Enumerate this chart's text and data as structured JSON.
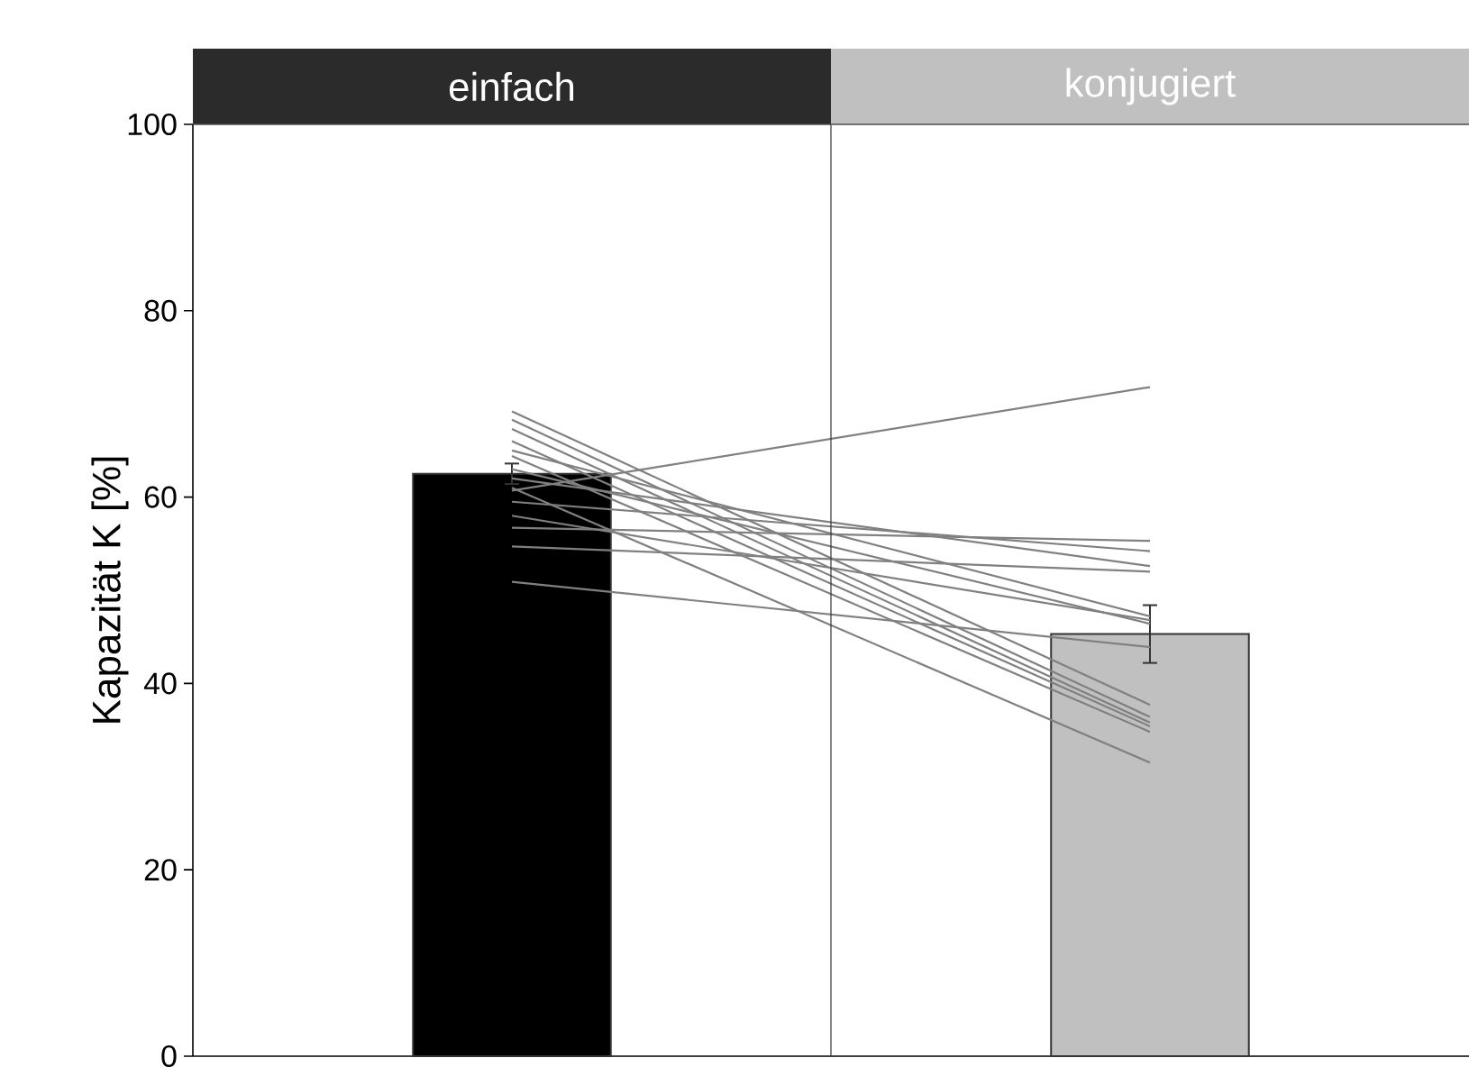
{
  "chart_data": {
    "type": "bar",
    "ylabel": "Kapazität K [%]",
    "categories": [
      "einfach",
      "konjugiert"
    ],
    "ylim": [
      0,
      100
    ],
    "yticks": [
      0,
      20,
      40,
      60,
      80,
      100
    ],
    "grid": false,
    "series": [
      {
        "colors": [
          "#000000",
          "#c0c0c0"
        ],
        "values": [
          62.5,
          45.3
        ],
        "errors": [
          1.1,
          3.1
        ]
      },
      {
        "type": "line",
        "color": "#808080",
        "values": [
          60.7,
          71.8
        ]
      },
      {
        "type": "line",
        "color": "#808080",
        "values": [
          56.7,
          55.3
        ]
      },
      {
        "type": "line",
        "color": "#808080",
        "values": [
          54.7,
          52.0
        ]
      },
      {
        "type": "line",
        "color": "#808080",
        "values": [
          59.5,
          54.2
        ]
      },
      {
        "type": "line",
        "color": "#808080",
        "values": [
          62.0,
          52.6
        ]
      },
      {
        "type": "line",
        "color": "#808080",
        "values": [
          65.0,
          47.2
        ]
      },
      {
        "type": "line",
        "color": "#808080",
        "values": [
          58.0,
          46.8
        ]
      },
      {
        "type": "line",
        "color": "#808080",
        "values": [
          63.0,
          46.4
        ]
      },
      {
        "type": "line",
        "color": "#808080",
        "values": [
          50.9,
          43.9
        ]
      },
      {
        "type": "line",
        "color": "#808080",
        "values": [
          69.2,
          37.7
        ]
      },
      {
        "type": "line",
        "color": "#808080",
        "values": [
          68.3,
          36.4
        ]
      },
      {
        "type": "line",
        "color": "#808080",
        "values": [
          67.3,
          35.8
        ]
      },
      {
        "type": "line",
        "color": "#808080",
        "values": [
          66.0,
          35.4
        ]
      },
      {
        "type": "line",
        "color": "#808080",
        "values": [
          64.4,
          34.8
        ]
      },
      {
        "type": "line",
        "color": "#808080",
        "values": [
          61.0,
          31.5
        ]
      }
    ]
  }
}
